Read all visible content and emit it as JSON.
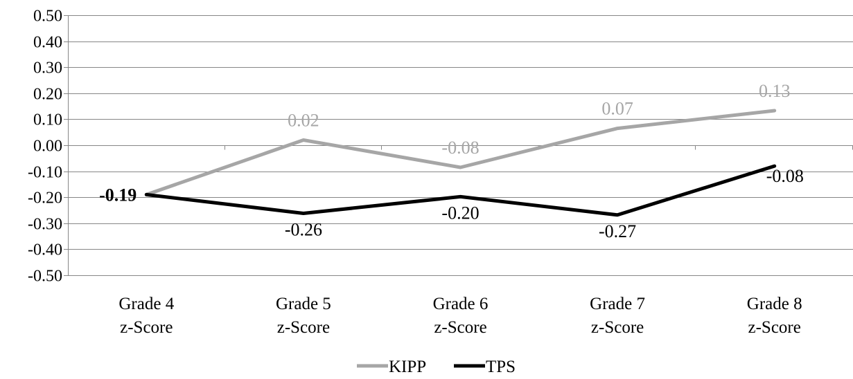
{
  "chart_data": {
    "type": "line",
    "categories": [
      "Grade 4\nz-Score",
      "Grade 5\nz-Score",
      "Grade 6\nz-Score",
      "Grade 7\nz-Score",
      "Grade 8\nz-Score"
    ],
    "ylim": [
      -0.5,
      0.5
    ],
    "ytick_step": 0.1,
    "yticks": [
      "0.50",
      "0.40",
      "0.30",
      "0.20",
      "0.10",
      "0.00",
      "-0.10",
      "-0.20",
      "-0.30",
      "-0.40",
      "-0.50"
    ],
    "grid": true,
    "legend_position": "bottom",
    "series": [
      {
        "name": "KIPP",
        "color": "#A6A6A6",
        "values": [
          -0.19,
          0.02,
          -0.085,
          0.065,
          0.133
        ],
        "labels": [
          "",
          "0.02",
          "-0.08",
          "0.07",
          "0.13"
        ]
      },
      {
        "name": "TPS",
        "color": "#000000",
        "values": [
          -0.19,
          -0.262,
          -0.198,
          -0.268,
          -0.08
        ],
        "labels": [
          "-0.19",
          "-0.26",
          "-0.20",
          "-0.27",
          "-0.08"
        ]
      }
    ]
  }
}
